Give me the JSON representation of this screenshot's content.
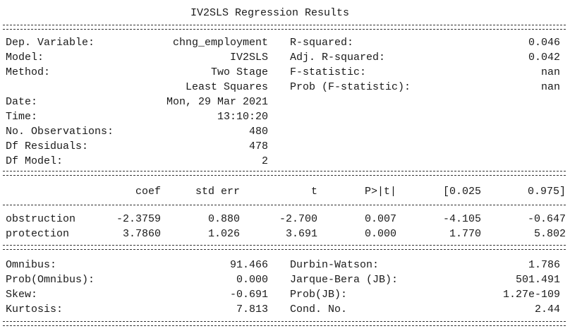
{
  "title": "IV2SLS Regression Results",
  "header_left": [
    {
      "label": "Dep. Variable:",
      "value": "chng_employment"
    },
    {
      "label": "Model:",
      "value": "IV2SLS"
    },
    {
      "label": "Method:",
      "value": "Two Stage"
    },
    {
      "label": "",
      "value": "Least Squares"
    },
    {
      "label": "Date:",
      "value": "Mon, 29 Mar 2021"
    },
    {
      "label": "Time:",
      "value": "13:10:20"
    },
    {
      "label": "No. Observations:",
      "value": "480"
    },
    {
      "label": "Df Residuals:",
      "value": "478"
    },
    {
      "label": "Df Model:",
      "value": "2"
    }
  ],
  "header_right": [
    {
      "label": "R-squared:",
      "value": "0.046"
    },
    {
      "label": "Adj. R-squared:",
      "value": "0.042"
    },
    {
      "label": "F-statistic:",
      "value": "nan"
    },
    {
      "label": "Prob (F-statistic):",
      "value": "nan"
    }
  ],
  "coef_table": {
    "columns": [
      "coef",
      "std err",
      "t",
      "P>|t|",
      "[0.025",
      "0.975]"
    ],
    "rows": [
      {
        "name": "obstruction",
        "cells": [
          "-2.3759",
          "0.880",
          "-2.700",
          "0.007",
          "-4.105",
          "-0.647"
        ]
      },
      {
        "name": "protection",
        "cells": [
          "3.7860",
          "1.026",
          "3.691",
          "0.000",
          "1.770",
          "5.802"
        ]
      }
    ]
  },
  "diagnostics": [
    {
      "left_label": "Omnibus:",
      "left_value": "91.466",
      "right_label": "Durbin-Watson:",
      "right_value": "1.786"
    },
    {
      "left_label": "Prob(Omnibus):",
      "left_value": "0.000",
      "right_label": "Jarque-Bera (JB):",
      "right_value": "501.491"
    },
    {
      "left_label": "Skew:",
      "left_value": "-0.691",
      "right_label": "Prob(JB):",
      "right_value": "1.27e-109"
    },
    {
      "left_label": "Kurtosis:",
      "left_value": "7.813",
      "right_label": "Cond. No.",
      "right_value": "2.44"
    }
  ]
}
